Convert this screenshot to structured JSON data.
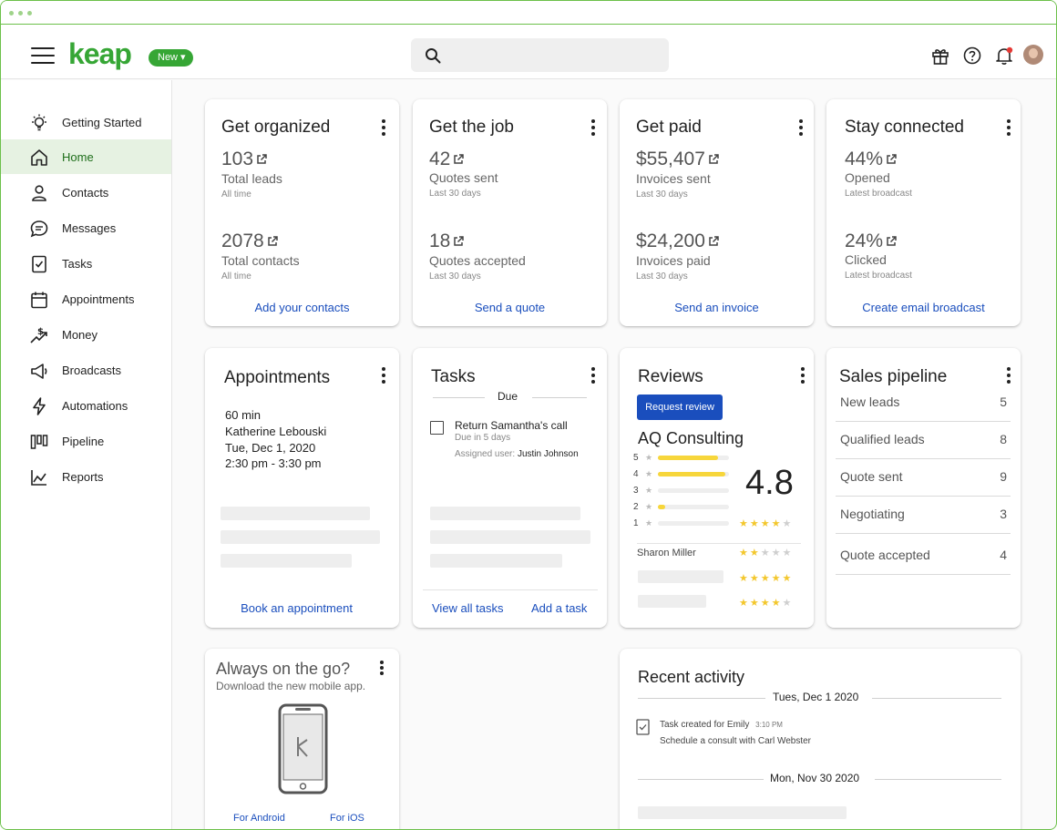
{
  "header": {
    "logo": "keap",
    "new_label": "New ▾"
  },
  "sidebar": {
    "items": [
      {
        "label": "Getting Started"
      },
      {
        "label": "Home"
      },
      {
        "label": "Contacts"
      },
      {
        "label": "Messages"
      },
      {
        "label": "Tasks"
      },
      {
        "label": "Appointments"
      },
      {
        "label": "Money"
      },
      {
        "label": "Broadcasts"
      },
      {
        "label": "Automations"
      },
      {
        "label": "Pipeline"
      },
      {
        "label": "Reports"
      }
    ],
    "active": "Home"
  },
  "cards": {
    "organized": {
      "title": "Get organized",
      "m1_value": "103",
      "m1_label": "Total leads",
      "m1_sub": "All time",
      "m2_value": "2078",
      "m2_label": "Total contacts",
      "m2_sub": "All time",
      "link": "Add your contacts"
    },
    "job": {
      "title": "Get the job",
      "m1_value": "42",
      "m1_label": "Quotes sent",
      "m1_sub": "Last 30 days",
      "m2_value": "18",
      "m2_label": "Quotes accepted",
      "m2_sub": "Last 30 days",
      "link": "Send a quote"
    },
    "paid": {
      "title": "Get paid",
      "m1_value": "$55,407",
      "m1_label": "Invoices sent",
      "m1_sub": "Last 30 days",
      "m2_value": "$24,200",
      "m2_label": "Invoices paid",
      "m2_sub": "Last 30 days",
      "link": "Send an invoice"
    },
    "connected": {
      "title": "Stay connected",
      "m1_value": "44%",
      "m1_label": "Opened",
      "m1_sub": "Latest broadcast",
      "m2_value": "24%",
      "m2_label": "Clicked",
      "m2_sub": "Latest broadcast",
      "link": "Create email broadcast"
    },
    "appointments": {
      "title": "Appointments",
      "duration": "60 min",
      "name": "Katherine Lebouski",
      "date": "Tue, Dec 1, 2020",
      "time": "2:30 pm - 3:30 pm",
      "link": "Book an appointment"
    },
    "tasks": {
      "title": "Tasks",
      "due_header": "Due",
      "task_title": "Return Samantha's call",
      "task_due": "Due in 5 days",
      "assigned_prefix": "Assigned user:",
      "assigned_name": "Justin Johnson",
      "link_view": "View all tasks",
      "link_add": "Add a task"
    },
    "reviews": {
      "title": "Reviews",
      "button": "Request review",
      "business": "AQ Consulting",
      "score": "4.8",
      "distribution": [
        {
          "stars": "5",
          "fill": 0.85
        },
        {
          "stars": "4",
          "fill": 0.95
        },
        {
          "stars": "3",
          "fill": 0
        },
        {
          "stars": "2",
          "fill": 0.1
        },
        {
          "stars": "1",
          "fill": 0
        }
      ],
      "reviewer": "Sharon Miller",
      "review_ratings": [
        4,
        2,
        5,
        4
      ]
    },
    "pipeline": {
      "title": "Sales pipeline",
      "stages": [
        {
          "label": "New leads",
          "count": "5"
        },
        {
          "label": "Qualified leads",
          "count": "8"
        },
        {
          "label": "Quote sent",
          "count": "9"
        },
        {
          "label": "Negotiating",
          "count": "3"
        },
        {
          "label": "Quote accepted",
          "count": "4"
        }
      ]
    },
    "mobile": {
      "title": "Always on the go?",
      "subtitle": "Download the new mobile app.",
      "android": "For Android",
      "ios": "For iOS"
    },
    "activity": {
      "title": "Recent activity",
      "date1": "Tues, Dec 1 2020",
      "item_title": "Task created for Emily",
      "item_time": "3:10 PM",
      "item_desc": "Schedule a consult with Carl Webster",
      "date2": "Mon, Nov 30 2020"
    }
  },
  "colors": {
    "brand": "#36a635",
    "link": "#1a4ebd",
    "star": "#f3c72d",
    "active_nav_bg": "#e6f2e2"
  }
}
